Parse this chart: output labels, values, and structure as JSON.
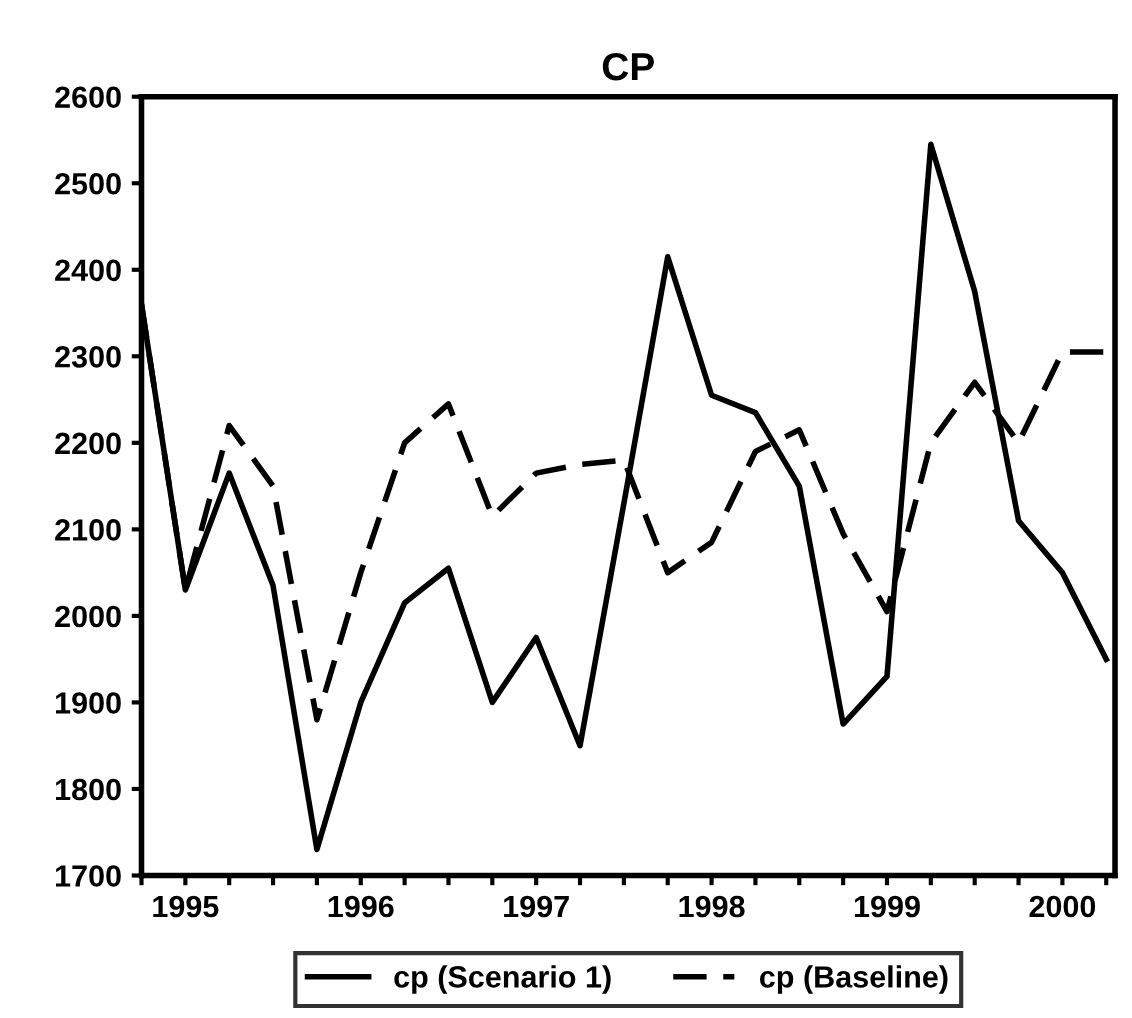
{
  "chart_data": {
    "type": "line",
    "title": "CP",
    "x": [
      1994.75,
      1995.0,
      1995.25,
      1995.5,
      1995.75,
      1996.0,
      1996.25,
      1996.5,
      1996.75,
      1997.0,
      1997.25,
      1997.5,
      1997.75,
      1998.0,
      1998.25,
      1998.5,
      1998.75,
      1999.0,
      1999.25,
      1999.5,
      1999.75,
      2000.0,
      2000.25
    ],
    "series": [
      {
        "name": "cp (Scenario 1)",
        "color": "#000000",
        "line_style": "solid",
        "values": [
          2360,
          2030,
          2165,
          2035,
          1730,
          1900,
          2015,
          2055,
          1900,
          1975,
          1850,
          2130,
          2415,
          2255,
          2235,
          2150,
          1875,
          1930,
          2545,
          2375,
          2110,
          2050,
          1950
        ]
      },
      {
        "name": "cp (Baseline)",
        "color": "#000000",
        "line_style": "dashed",
        "values": [
          2360,
          2030,
          2220,
          2150,
          1880,
          2050,
          2200,
          2245,
          2115,
          2165,
          2175,
          2180,
          2050,
          2085,
          2190,
          2215,
          2095,
          2005,
          2200,
          2270,
          2200,
          2305,
          2305
        ]
      }
    ],
    "xlim": [
      1994.75,
      2000.3
    ],
    "xticks": [
      {
        "value": 1994.75,
        "label": null
      },
      1995,
      {
        "value": 1995.25,
        "label": null
      },
      {
        "value": 1995.5,
        "label": null
      },
      {
        "value": 1995.75,
        "label": null
      },
      1996,
      {
        "value": 1996.25,
        "label": null
      },
      {
        "value": 1996.5,
        "label": null
      },
      {
        "value": 1996.75,
        "label": null
      },
      1997,
      {
        "value": 1997.25,
        "label": null
      },
      {
        "value": 1997.5,
        "label": null
      },
      {
        "value": 1997.75,
        "label": null
      },
      1998,
      {
        "value": 1998.25,
        "label": null
      },
      {
        "value": 1998.5,
        "label": null
      },
      {
        "value": 1998.75,
        "label": null
      },
      1999,
      {
        "value": 1999.25,
        "label": null
      },
      {
        "value": 1999.5,
        "label": null
      },
      {
        "value": 1999.75,
        "label": null
      },
      2000,
      {
        "value": 2000.25,
        "label": null
      }
    ],
    "ylim": [
      1700,
      2600
    ],
    "yticks": [
      1700,
      1800,
      1900,
      2000,
      2100,
      2200,
      2300,
      2400,
      2500,
      2600
    ],
    "grid": false,
    "legend": "bottom",
    "marker": "none"
  }
}
